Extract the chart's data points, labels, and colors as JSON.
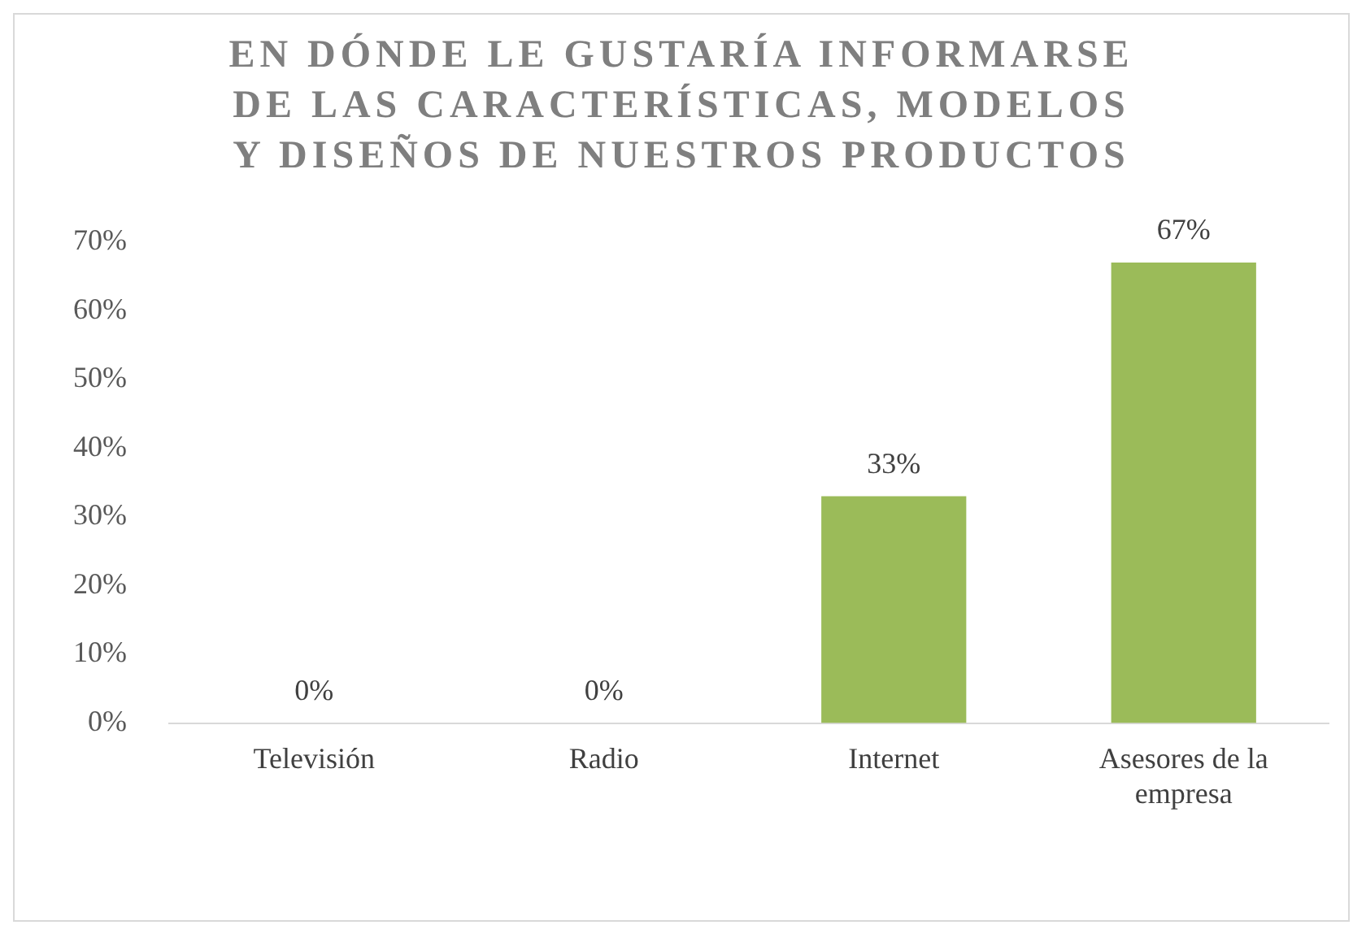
{
  "chart_data": {
    "type": "bar",
    "title": "EN DÓNDE LE GUSTARÍA INFORMARSE DE LAS CARACTERÍSTICAS, MODELOS Y DISEÑOS DE NUESTROS PRODUCTOS",
    "categories": [
      "Televisión",
      "Radio",
      "Internet",
      "Asesores de la empresa"
    ],
    "values": [
      0,
      0,
      33,
      67
    ],
    "color": "#9bbb59",
    "ylim": [
      0,
      70
    ],
    "yticks": [
      {
        "value": 0,
        "label": "0%"
      },
      {
        "value": 10,
        "label": "10%"
      },
      {
        "value": 20,
        "label": "20%"
      },
      {
        "value": 30,
        "label": "30%"
      },
      {
        "value": 40,
        "label": "40%"
      },
      {
        "value": 50,
        "label": "50%"
      },
      {
        "value": 60,
        "label": "60%"
      },
      {
        "value": 70,
        "label": "70%"
      }
    ],
    "value_labels": [
      "0%",
      "0%",
      "33%",
      "67%"
    ],
    "grid": false,
    "legend": false
  }
}
